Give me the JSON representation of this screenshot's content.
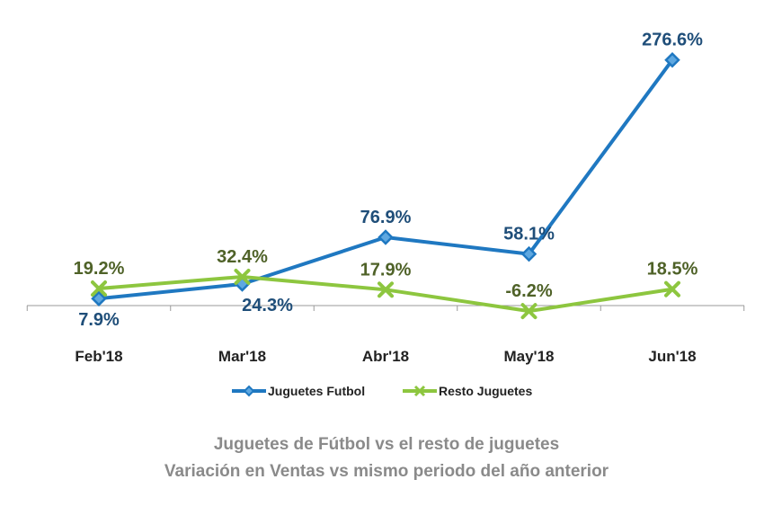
{
  "chart_data": {
    "type": "line",
    "categories": [
      "Feb'18",
      "Mar'18",
      "Abr'18",
      "May'18",
      "Jun'18"
    ],
    "series": [
      {
        "name": "Juguetes Futbol",
        "values": [
          7.9,
          24.3,
          76.9,
          58.1,
          276.6
        ],
        "labels": [
          "7.9%",
          "24.3%",
          "76.9%",
          "58.1%",
          "276.6%"
        ],
        "color": "#1F78C1",
        "label_color": "#1F4E79",
        "marker": "diamond"
      },
      {
        "name": "Resto Juguetes",
        "values": [
          19.2,
          32.4,
          17.9,
          -6.2,
          18.5
        ],
        "labels": [
          "19.2%",
          "32.4%",
          "17.9%",
          "-6.2%",
          "18.5%"
        ],
        "color": "#8DC63F",
        "label_color": "#4F6228",
        "marker": "x"
      }
    ],
    "legend_position": "bottom",
    "grid": false,
    "ylim": [
      -10,
      290
    ]
  },
  "caption": {
    "line1": "Juguetes de Fútbol vs el resto de juguetes",
    "line2": "Variación en Ventas vs mismo periodo del año anterior"
  }
}
